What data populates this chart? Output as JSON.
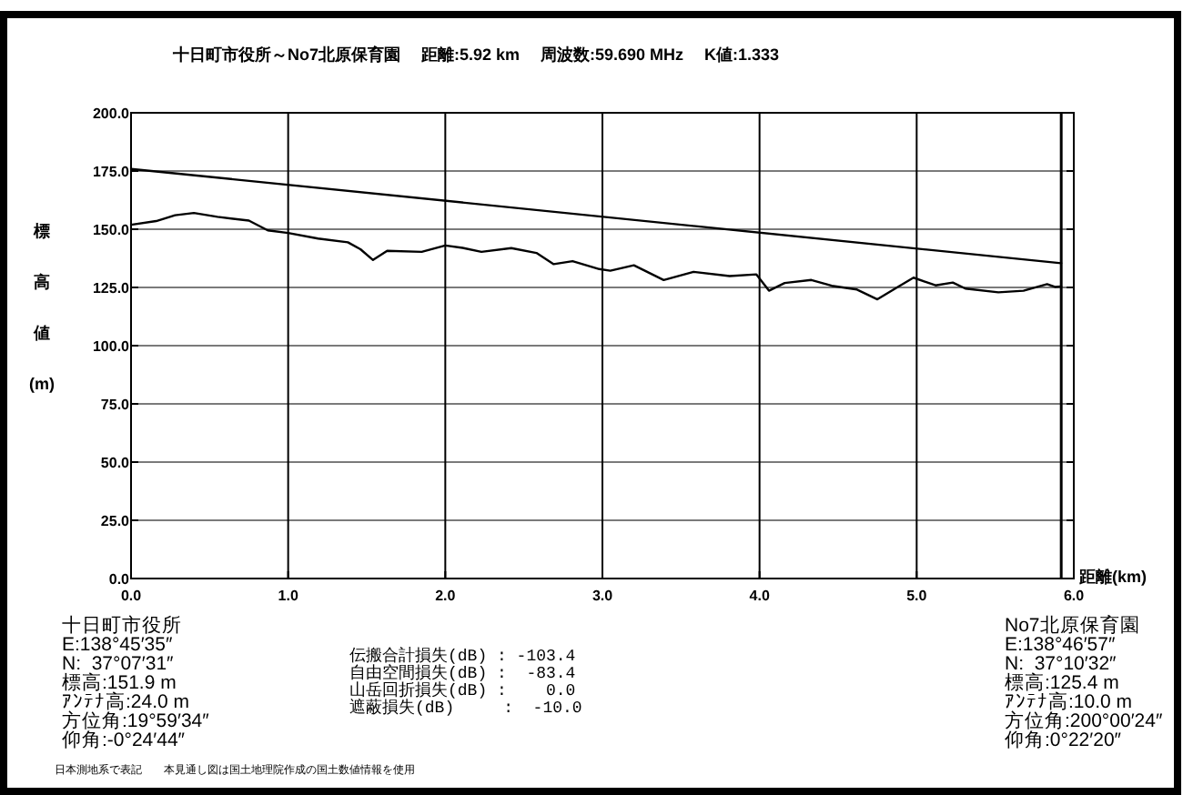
{
  "chart_data": {
    "type": "line",
    "title": "十日町市役所～No7北原保育園　 距離:5.92 km　 周波数:59.690 MHz　 K値:1.333",
    "xlabel": "距離(km)",
    "ylabel": "標高値(m)",
    "xlim": [
      0,
      6
    ],
    "ylim": [
      0,
      200
    ],
    "xticks": [
      {
        "value": 0,
        "label": "0.0"
      },
      {
        "value": 1,
        "label": "1.0"
      },
      {
        "value": 2,
        "label": "2.0"
      },
      {
        "value": 3,
        "label": "3.0"
      },
      {
        "value": 4,
        "label": "4.0"
      },
      {
        "value": 5,
        "label": "5.0"
      },
      {
        "value": 6,
        "label": "6.0"
      }
    ],
    "yticks": [
      {
        "value": 0,
        "label": "0.0"
      },
      {
        "value": 25,
        "label": "25.0"
      },
      {
        "value": 50,
        "label": "50.0"
      },
      {
        "value": 75,
        "label": "75.0"
      },
      {
        "value": 100,
        "label": "100.0"
      },
      {
        "value": 125,
        "label": "125.0"
      },
      {
        "value": 150,
        "label": "150.0"
      },
      {
        "value": 175,
        "label": "175.0"
      },
      {
        "value": 200,
        "label": "200.0"
      }
    ],
    "grid": true,
    "marker": "none",
    "line_style": "solid",
    "series": [
      {
        "color": "#000000",
        "x": [
          0,
          0.16,
          0.28,
          0.4,
          0.55,
          0.75,
          0.87,
          1.0,
          1.19,
          1.38,
          1.46,
          1.54,
          1.63,
          1.85,
          2.0,
          2.11,
          2.23,
          2.42,
          2.58,
          2.69,
          2.81,
          2.98,
          3.05,
          3.2,
          3.39,
          3.58,
          3.81,
          3.98,
          4.06,
          4.16,
          4.33,
          4.46,
          4.62,
          4.75,
          4.88,
          4.98,
          5.12,
          5.23,
          5.31,
          5.52,
          5.68,
          5.83,
          5.88,
          5.92
        ],
        "values": [
          151.9,
          153.5,
          156,
          157,
          155.3,
          153.7,
          149.5,
          148.4,
          146,
          144.4,
          141.4,
          136.8,
          140.7,
          140.3,
          143,
          142,
          140.3,
          141.9,
          139.8,
          135,
          136.3,
          132.9,
          132.2,
          134.5,
          128.2,
          131.7,
          129.9,
          130.6,
          123.6,
          126.9,
          128.2,
          125.7,
          124.1,
          119.9,
          125.2,
          129.2,
          125.9,
          127.1,
          124.5,
          122.9,
          123.6,
          126.4,
          125.2,
          125.4
        ]
      },
      {
        "color": "#000000",
        "x": [
          0,
          5.92
        ],
        "values": [
          175.9,
          135.4
        ]
      }
    ],
    "ref_lines": [
      {
        "axis": "x",
        "value": 5.92,
        "label": null
      }
    ],
    "annotations": [
      "十日町市役所\nE:138°45′35″\nN:  37°07′31″\n標高:151.9 m\nｱﾝﾃﾅ高:24.0 m\n方位角:19°59′34″\n仰角:-0°24′44″",
      "伝搬合計損失(dB) : -103.4\n自由空間損失(dB) :  -83.4\n山岳回折損失(dB) :    0.0\n遮蔽損失(dB)     :  -10.0",
      "No7北原保育園\nE:138°46′57″\nN:  37°10′32″\n標高:125.4 m\nｱﾝﾃﾅ高:10.0 m\n方位角:200°00′24″\n仰角:0°22′20″",
      "日本測地系で表記　　本見通し図は国土地理院作成の国土数値情報を使用"
    ]
  }
}
